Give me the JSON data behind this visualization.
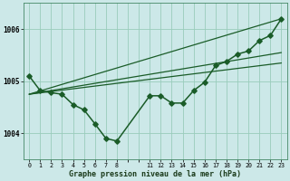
{
  "background_color": "#cce8e8",
  "plot_bg_color": "#cce8e8",
  "grid_color": "#99ccbb",
  "line_color": "#1a5c28",
  "xlabel": "Graphe pression niveau de la mer (hPa)",
  "ylim": [
    1003.5,
    1006.5
  ],
  "yticks": [
    1004,
    1005,
    1006
  ],
  "xlim": [
    -0.5,
    23.5
  ],
  "xtick_positions": [
    0,
    1,
    2,
    3,
    4,
    5,
    6,
    7,
    8,
    11,
    12,
    13,
    14,
    15,
    16,
    17,
    18,
    19,
    20,
    21,
    22,
    23
  ],
  "xtick_labels": [
    "0",
    "1",
    "2",
    "3",
    "4",
    "5",
    "6",
    "7",
    "8",
    "11",
    "12",
    "13",
    "14",
    "15",
    "16",
    "17",
    "18",
    "19",
    "20",
    "21",
    "22",
    "23"
  ],
  "main_series": {
    "x": [
      0,
      1,
      2,
      3,
      4,
      5,
      6,
      7,
      8,
      11,
      12,
      13,
      14,
      15,
      16,
      17,
      18,
      19,
      20,
      21,
      22,
      23
    ],
    "y": [
      1005.1,
      1004.82,
      1004.78,
      1004.75,
      1004.55,
      1004.45,
      1004.18,
      1003.9,
      1003.85,
      1004.72,
      1004.72,
      1004.58,
      1004.58,
      1004.82,
      1004.98,
      1005.3,
      1005.38,
      1005.52,
      1005.58,
      1005.78,
      1005.88,
      1006.2
    ],
    "marker": "D",
    "markersize": 2.8,
    "linewidth": 1.1
  },
  "envelope_lines": [
    {
      "x": [
        0,
        23
      ],
      "y": [
        1004.75,
        1006.2
      ],
      "linewidth": 0.9
    },
    {
      "x": [
        0,
        23
      ],
      "y": [
        1004.75,
        1005.55
      ],
      "linewidth": 0.9
    },
    {
      "x": [
        0,
        23
      ],
      "y": [
        1004.75,
        1005.35
      ],
      "linewidth": 0.9
    }
  ]
}
